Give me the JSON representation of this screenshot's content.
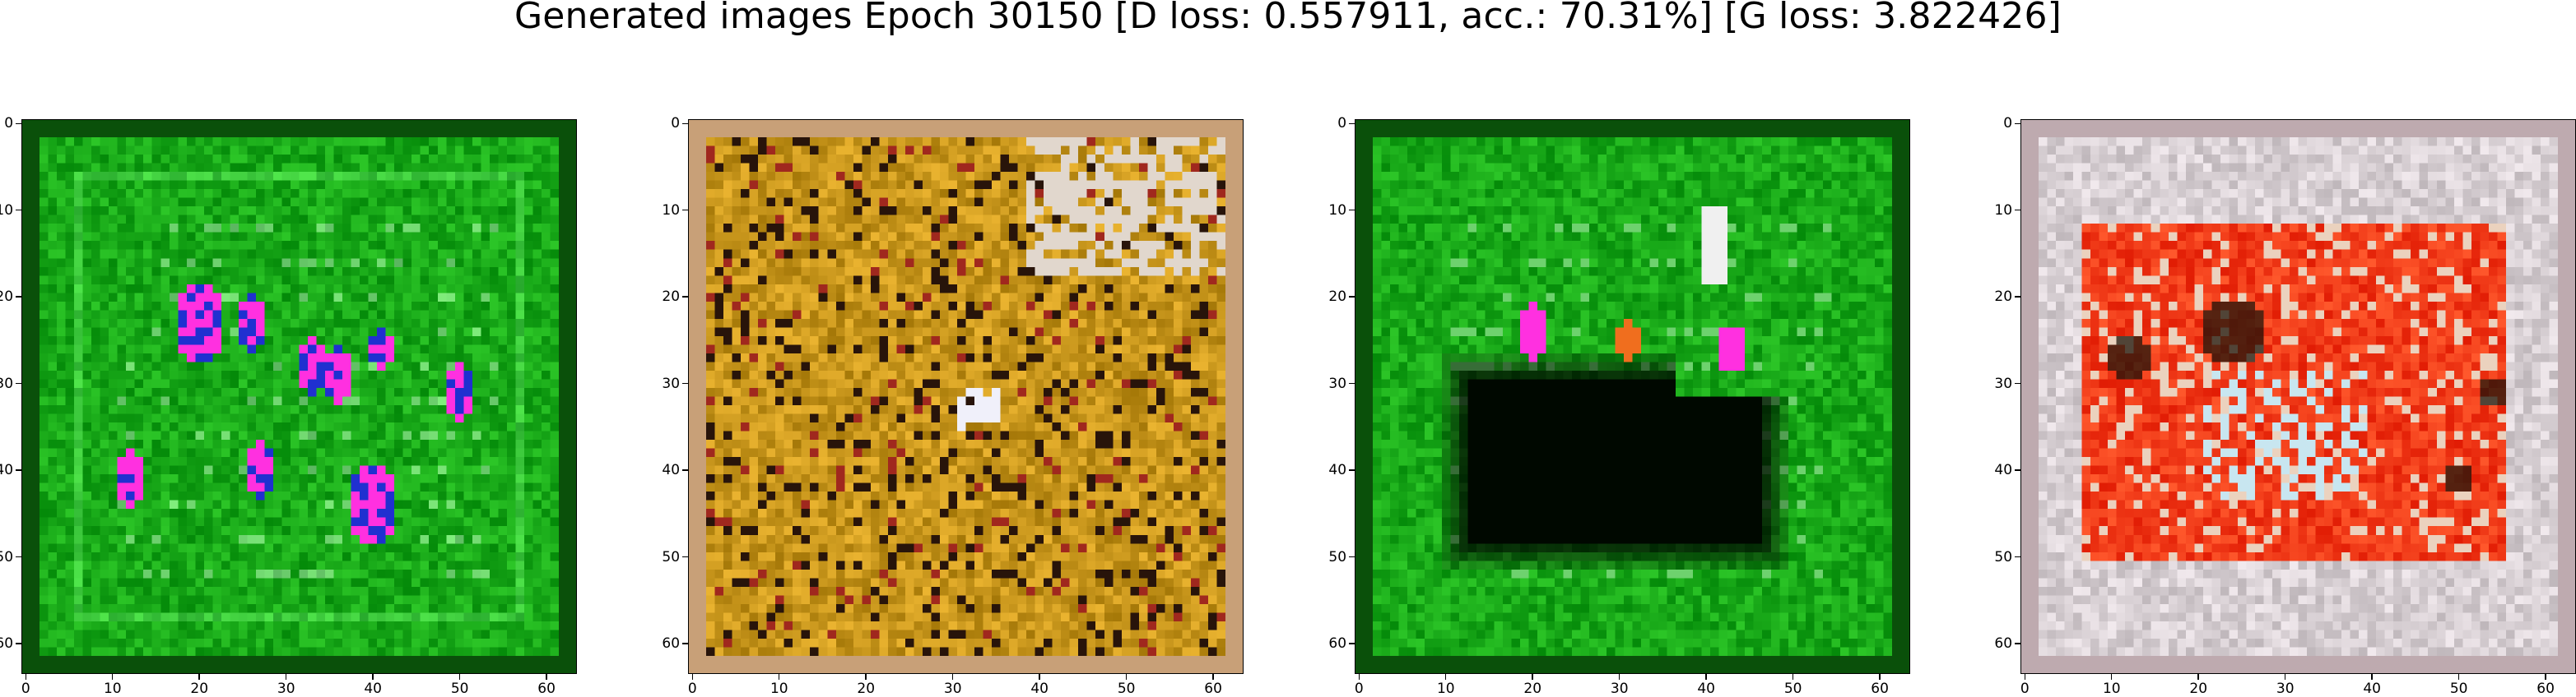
{
  "figure": {
    "title": "Generated images Epoch 30150 [D loss: 0.557911, acc.: 70.31%] [G loss: 3.822426]"
  },
  "chart_data": [
    {
      "type": "heatmap",
      "description_color": "green",
      "xlim": [
        0,
        63
      ],
      "ylim": [
        63,
        0
      ],
      "xticks": [
        0,
        10,
        20,
        30,
        40,
        50,
        60
      ],
      "yticks": [
        0,
        10,
        20,
        30,
        40,
        50,
        60
      ]
    },
    {
      "type": "heatmap",
      "description_color": "golden",
      "xlim": [
        0,
        63
      ],
      "ylim": [
        63,
        0
      ],
      "xticks": [
        0,
        10,
        20,
        30,
        40,
        50,
        60
      ],
      "yticks": [
        0,
        10,
        20,
        30,
        40,
        50,
        60
      ]
    },
    {
      "type": "heatmap",
      "description_color": "green-dark",
      "xlim": [
        0,
        63
      ],
      "ylim": [
        63,
        0
      ],
      "xticks": [
        0,
        10,
        20,
        30,
        40,
        50,
        60
      ],
      "yticks": [
        0,
        10,
        20,
        30,
        40,
        50,
        60
      ]
    },
    {
      "type": "heatmap",
      "description_color": "pale-red",
      "xlim": [
        0,
        63
      ],
      "ylim": [
        63,
        0
      ],
      "xticks": [
        0,
        10,
        20,
        30,
        40,
        50,
        60
      ],
      "yticks": [
        0,
        10,
        20,
        30,
        40,
        50,
        60
      ]
    }
  ],
  "colors": {
    "green_base": "#18a818",
    "gold_base": "#c8961c",
    "pale_base": "#d8d0d4",
    "red_fill": "#f03a18",
    "magenta": "#ff30e0",
    "blue": "#2030d0"
  }
}
